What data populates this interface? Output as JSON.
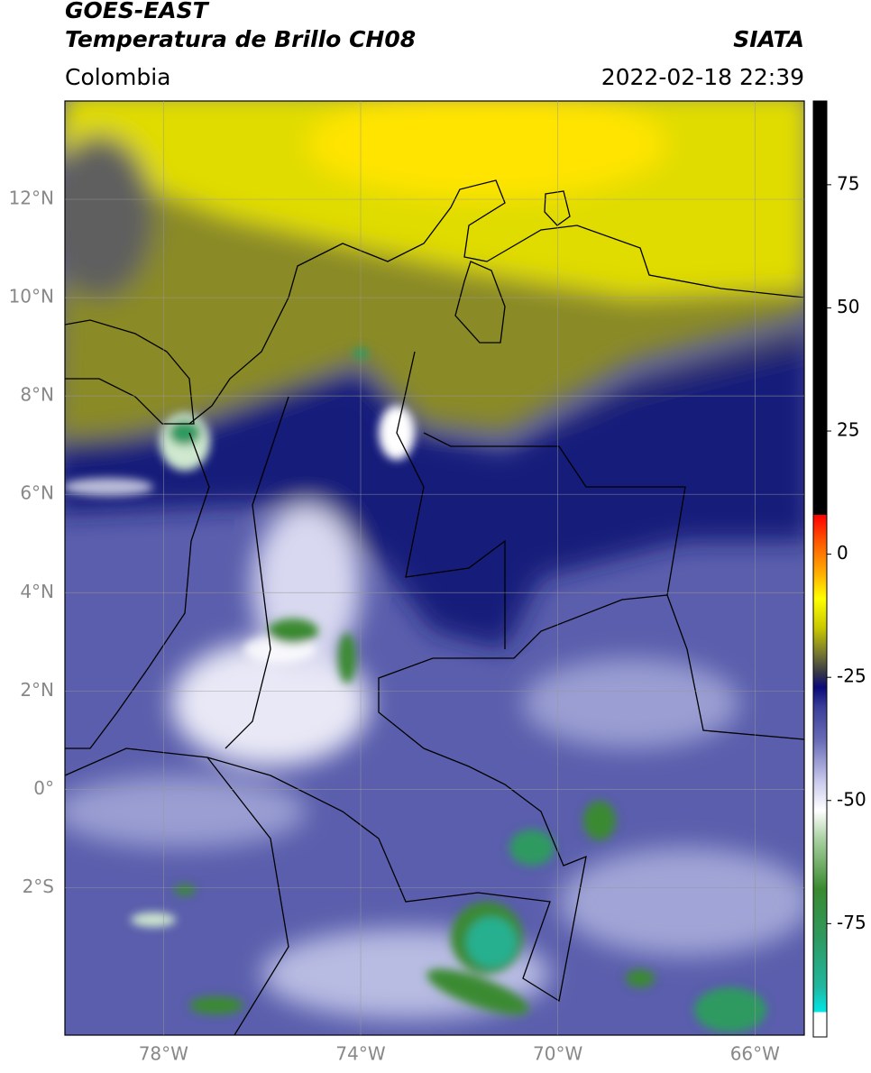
{
  "header": {
    "title1": "GOES-EAST",
    "title2": "Temperatura de Brillo CH08",
    "source": "SIATA",
    "region": "Colombia",
    "datetime": "2022-02-18 22:39"
  },
  "map": {
    "xlim": [
      -80,
      -65
    ],
    "ylim": [
      -5,
      14
    ],
    "grid": true,
    "xticks": [
      {
        "value": -78,
        "label": "78°W"
      },
      {
        "value": -74,
        "label": "74°W"
      },
      {
        "value": -70,
        "label": "70°W"
      },
      {
        "value": -66,
        "label": "66°W"
      }
    ],
    "yticks": [
      {
        "value": 12,
        "label": "12°N"
      },
      {
        "value": 10,
        "label": "10°N"
      },
      {
        "value": 8,
        "label": "8°N"
      },
      {
        "value": 6,
        "label": "6°N"
      },
      {
        "value": 4,
        "label": "4°N"
      },
      {
        "value": 2,
        "label": "2°N"
      },
      {
        "value": 0,
        "label": "0°"
      },
      {
        "value": -2,
        "label": "2°S"
      }
    ]
  },
  "colorbar": {
    "clim": [
      -98,
      92
    ],
    "ticks": [
      75,
      50,
      25,
      0,
      -25,
      -50,
      -75
    ],
    "colormap": [
      {
        "value": -98,
        "color": "#ffffff"
      },
      {
        "value": -93,
        "color": "#ffffff"
      },
      {
        "value": -93,
        "color": "#00e8e8"
      },
      {
        "value": -88,
        "color": "#20b8a0"
      },
      {
        "value": -78,
        "color": "#2e9a60"
      },
      {
        "value": -68,
        "color": "#3a8a30"
      },
      {
        "value": -58,
        "color": "#a8d0a0"
      },
      {
        "value": -52,
        "color": "#ffffff"
      },
      {
        "value": -46,
        "color": "#c8c8ec"
      },
      {
        "value": -38,
        "color": "#6a6eb8"
      },
      {
        "value": -31,
        "color": "#3a3e98"
      },
      {
        "value": -27,
        "color": "#0a0a78"
      },
      {
        "value": -24,
        "color": "#383848"
      },
      {
        "value": -20,
        "color": "#7a7a30"
      },
      {
        "value": -15,
        "color": "#c8c800"
      },
      {
        "value": -9,
        "color": "#ffff00"
      },
      {
        "value": -4,
        "color": "#ffb000"
      },
      {
        "value": 2,
        "color": "#ff6000"
      },
      {
        "value": 8,
        "color": "#ff0000"
      },
      {
        "value": 8,
        "color": "#000000"
      },
      {
        "value": 92,
        "color": "#000000"
      }
    ]
  }
}
